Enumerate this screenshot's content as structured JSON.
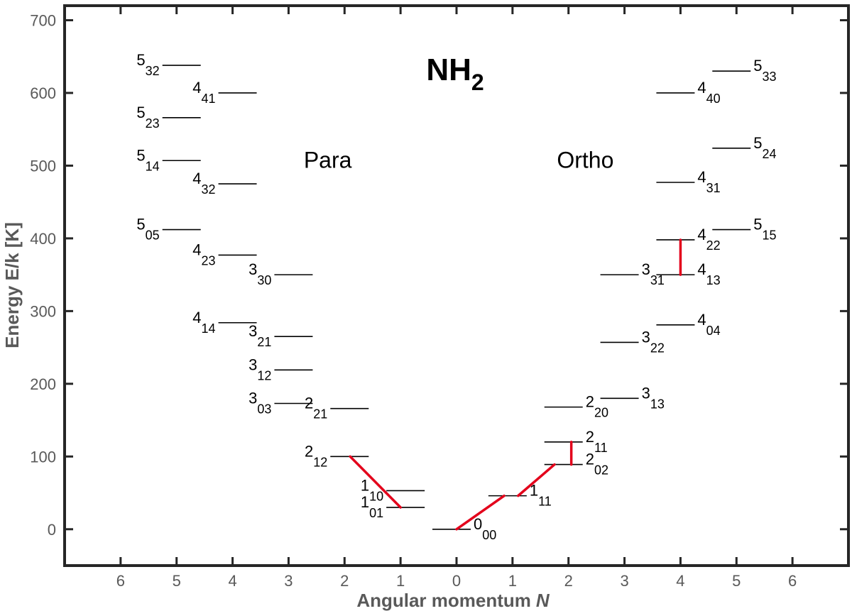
{
  "chart_data": {
    "type": "scatter",
    "title": "NH",
    "title_subscript": "2",
    "xlabel": "Angular momentum",
    "xlabel_italic": "N",
    "ylabel": "Energy E/k [K]",
    "xlim": [
      -7,
      7
    ],
    "ylim": [
      -50,
      720
    ],
    "x_ticks": [
      {
        "v": -6,
        "label": "6"
      },
      {
        "v": -5,
        "label": "5"
      },
      {
        "v": -4,
        "label": "4"
      },
      {
        "v": -3,
        "label": "3"
      },
      {
        "v": -2,
        "label": "2"
      },
      {
        "v": -1,
        "label": "1"
      },
      {
        "v": 0,
        "label": "0"
      },
      {
        "v": 1,
        "label": "1"
      },
      {
        "v": 2,
        "label": "2"
      },
      {
        "v": 3,
        "label": "3"
      },
      {
        "v": 4,
        "label": "4"
      },
      {
        "v": 5,
        "label": "5"
      },
      {
        "v": 6,
        "label": "6"
      }
    ],
    "y_ticks": [
      0,
      100,
      200,
      300,
      400,
      500,
      600,
      700
    ],
    "group_labels": [
      {
        "text": "Para",
        "x": -2.3,
        "y": 505
      },
      {
        "text": "Ortho",
        "x": 2.3,
        "y": 505
      }
    ],
    "levels": [
      {
        "n": "0",
        "sub": "00",
        "x": 0,
        "e": 0,
        "side": "right"
      },
      {
        "n": "1",
        "sub": "01",
        "x": -1,
        "e": 30,
        "side": "left"
      },
      {
        "n": "1",
        "sub": "10",
        "x": -1,
        "e": 53,
        "side": "left"
      },
      {
        "n": "1",
        "sub": "11",
        "x": 1,
        "e": 46,
        "side": "right"
      },
      {
        "n": "2",
        "sub": "12",
        "x": -2,
        "e": 100,
        "side": "left"
      },
      {
        "n": "2",
        "sub": "21",
        "x": -2,
        "e": 166,
        "side": "left"
      },
      {
        "n": "2",
        "sub": "02",
        "x": 2,
        "e": 89,
        "side": "right"
      },
      {
        "n": "2",
        "sub": "11",
        "x": 2,
        "e": 120,
        "side": "right"
      },
      {
        "n": "2",
        "sub": "20",
        "x": 2,
        "e": 168,
        "side": "right"
      },
      {
        "n": "3",
        "sub": "03",
        "x": -3,
        "e": 173,
        "side": "left"
      },
      {
        "n": "3",
        "sub": "12",
        "x": -3,
        "e": 219,
        "side": "left"
      },
      {
        "n": "3",
        "sub": "21",
        "x": -3,
        "e": 265,
        "side": "left"
      },
      {
        "n": "3",
        "sub": "30",
        "x": -3,
        "e": 350,
        "side": "left"
      },
      {
        "n": "3",
        "sub": "13",
        "x": 3,
        "e": 180,
        "side": "right"
      },
      {
        "n": "3",
        "sub": "22",
        "x": 3,
        "e": 257,
        "side": "right"
      },
      {
        "n": "3",
        "sub": "31",
        "x": 3,
        "e": 350,
        "side": "right"
      },
      {
        "n": "4",
        "sub": "14",
        "x": -4,
        "e": 284,
        "side": "left"
      },
      {
        "n": "4",
        "sub": "23",
        "x": -4,
        "e": 377,
        "side": "left"
      },
      {
        "n": "4",
        "sub": "32",
        "x": -4,
        "e": 475,
        "side": "left"
      },
      {
        "n": "4",
        "sub": "41",
        "x": -4,
        "e": 600,
        "side": "left"
      },
      {
        "n": "4",
        "sub": "04",
        "x": 4,
        "e": 281,
        "side": "right"
      },
      {
        "n": "4",
        "sub": "13",
        "x": 4,
        "e": 350,
        "side": "right"
      },
      {
        "n": "4",
        "sub": "22",
        "x": 4,
        "e": 398,
        "side": "right"
      },
      {
        "n": "4",
        "sub": "31",
        "x": 4,
        "e": 477,
        "side": "right"
      },
      {
        "n": "4",
        "sub": "40",
        "x": 4,
        "e": 600,
        "side": "right"
      },
      {
        "n": "5",
        "sub": "05",
        "x": -5,
        "e": 412,
        "side": "left"
      },
      {
        "n": "5",
        "sub": "14",
        "x": -5,
        "e": 507,
        "side": "left"
      },
      {
        "n": "5",
        "sub": "23",
        "x": -5,
        "e": 566,
        "side": "left"
      },
      {
        "n": "5",
        "sub": "32",
        "x": -5,
        "e": 638,
        "side": "left"
      },
      {
        "n": "5",
        "sub": "15",
        "x": 5,
        "e": 412,
        "side": "right"
      },
      {
        "n": "5",
        "sub": "24",
        "x": 5,
        "e": 524,
        "side": "right"
      },
      {
        "n": "5",
        "sub": "33",
        "x": 5,
        "e": 630,
        "side": "right"
      }
    ],
    "transitions": [
      {
        "from": [
          -1.9,
          100
        ],
        "to": [
          -1.0,
          30
        ]
      },
      {
        "from": [
          0,
          0
        ],
        "to": [
          0.85,
          46
        ]
      },
      {
        "from": [
          1.1,
          46
        ],
        "to": [
          1.75,
          89
        ]
      },
      {
        "from": [
          2.05,
          89
        ],
        "to": [
          2.05,
          120
        ]
      },
      {
        "from": [
          4.0,
          350
        ],
        "to": [
          4.0,
          398
        ]
      }
    ],
    "colors": {
      "axis_text": "#595959",
      "level_line": "#000000",
      "transition": "#e3001b",
      "frame": "#262626"
    }
  }
}
